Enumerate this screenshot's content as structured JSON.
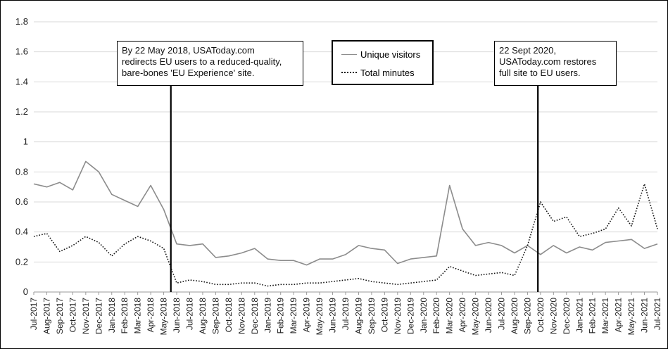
{
  "chart_data": {
    "type": "line",
    "categories": [
      "Jul-2017",
      "Aug-2017",
      "Sep-2017",
      "Oct-2017",
      "Nov-2017",
      "Dec-2017",
      "Jan-2018",
      "Feb-2018",
      "Mar-2018",
      "Apr-2018",
      "May-2018",
      "Jun-2018",
      "Jul-2018",
      "Aug-2018",
      "Sep-2018",
      "Oct-2018",
      "Nov-2018",
      "Dec-2018",
      "Jan-2019",
      "Feb-2019",
      "Mar-2019",
      "Apr-2019",
      "May-2019",
      "Jun-2019",
      "Jul-2019",
      "Aug-2019",
      "Sep-2019",
      "Oct-2019",
      "Nov-2019",
      "Dec-2019",
      "Jan-2020",
      "Feb-2020",
      "Mar-2020",
      "Apr-2020",
      "May-2020",
      "Jun-2020",
      "Jul-2020",
      "Aug-2020",
      "Sep-2020",
      "Oct-2020",
      "Nov-2020",
      "Dec-2020",
      "Jan-2021",
      "Feb-2021",
      "Mar-2021",
      "Apr-2021",
      "May-2021",
      "Jun-2021",
      "Jul-2021"
    ],
    "series": [
      {
        "name": "Unique visitors",
        "color": "#8c8c8c",
        "style": "solid",
        "values": [
          0.72,
          0.7,
          0.73,
          0.68,
          0.87,
          0.8,
          0.65,
          0.61,
          0.57,
          0.71,
          0.55,
          0.32,
          0.31,
          0.32,
          0.23,
          0.24,
          0.26,
          0.29,
          0.22,
          0.21,
          0.21,
          0.18,
          0.22,
          0.22,
          0.25,
          0.31,
          0.29,
          0.28,
          0.19,
          0.22,
          0.23,
          0.24,
          0.71,
          0.42,
          0.31,
          0.33,
          0.31,
          0.26,
          0.31,
          0.25,
          0.31,
          0.26,
          0.3,
          0.28,
          0.33,
          0.34,
          0.35,
          0.29,
          0.32
        ]
      },
      {
        "name": "Total minutes",
        "color": "#111111",
        "style": "dotted",
        "values": [
          0.37,
          0.39,
          0.27,
          0.31,
          0.37,
          0.33,
          0.24,
          0.32,
          0.37,
          0.34,
          0.29,
          0.06,
          0.08,
          0.07,
          0.05,
          0.05,
          0.06,
          0.06,
          0.04,
          0.05,
          0.05,
          0.06,
          0.06,
          0.07,
          0.08,
          0.09,
          0.07,
          0.06,
          0.05,
          0.06,
          0.07,
          0.08,
          0.17,
          0.14,
          0.11,
          0.12,
          0.13,
          0.11,
          0.31,
          0.6,
          0.47,
          0.5,
          0.37,
          0.39,
          0.42,
          0.56,
          0.44,
          0.72,
          0.42
        ]
      }
    ],
    "y_ticks": [
      "0",
      "0.2",
      "0.4",
      "0.6",
      "0.8",
      "1",
      "1.2",
      "1.4",
      "1.6",
      "1.8"
    ],
    "ylim": [
      0,
      1.8
    ],
    "grid": true,
    "legend_position": "top-center",
    "annotations": [
      {
        "text_lines": [
          "By 22 May 2018, USAToday.com",
          "redirects EU users to a reduced-quality,",
          "bare-bones 'EU Experience' site."
        ],
        "x_position": 10.55
      },
      {
        "text_lines": [
          "22 Sept 2020,",
          "USAToday.com restores",
          "full site to EU users."
        ],
        "x_position": 38.8
      }
    ]
  }
}
